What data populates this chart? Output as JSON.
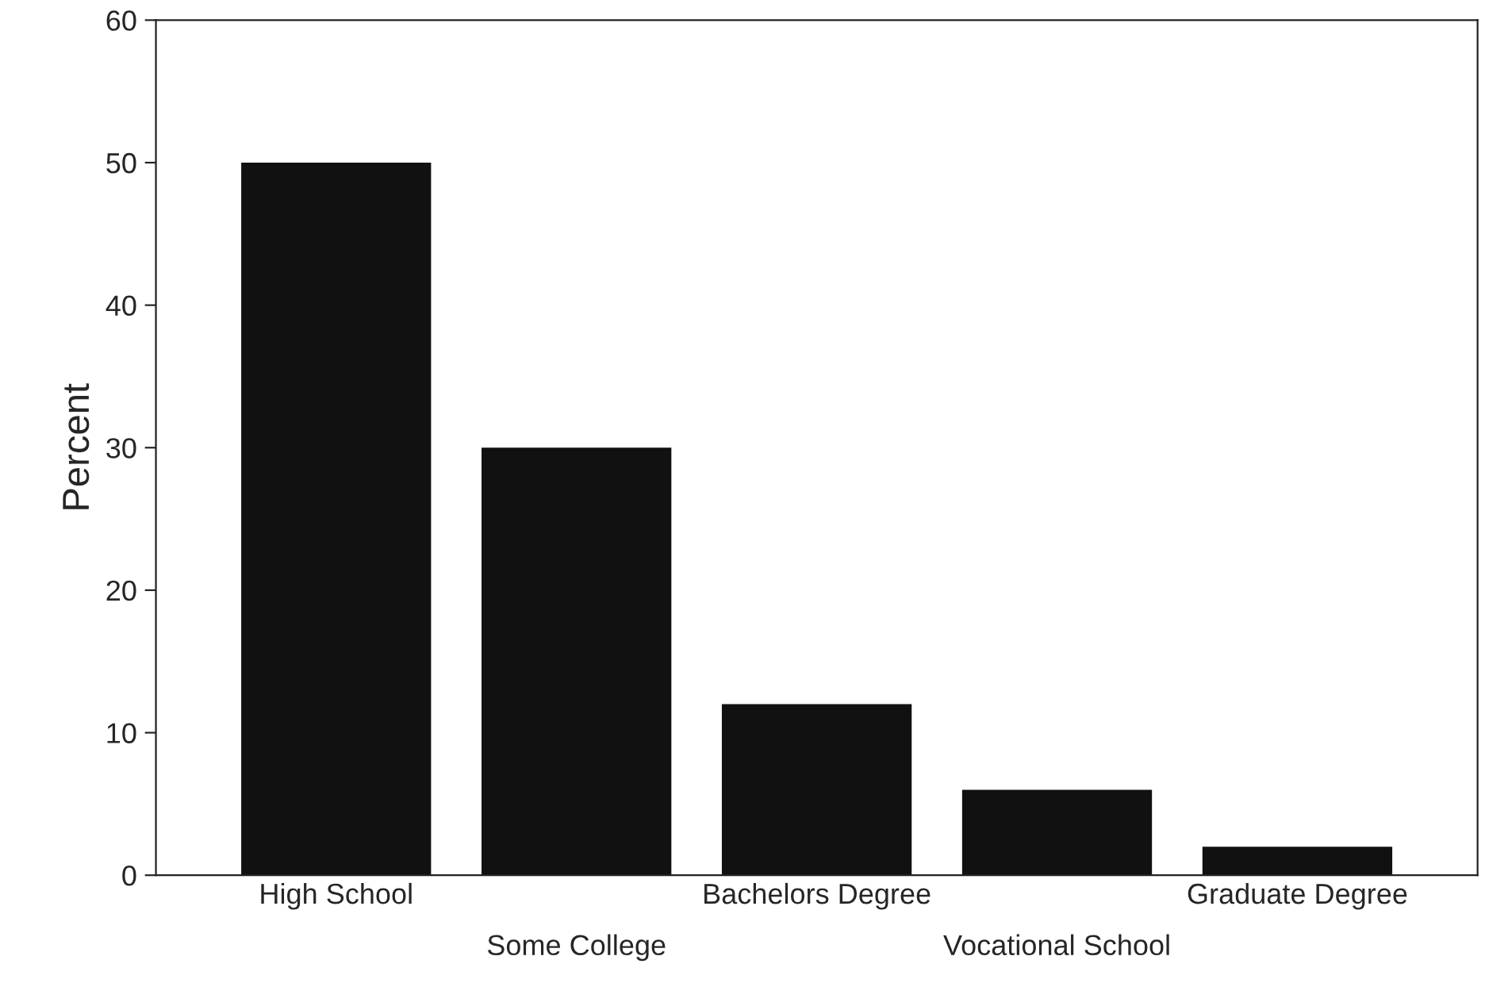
{
  "chart_data": {
    "type": "bar",
    "ylabel": "Percent",
    "categories": [
      "High School",
      "Some College",
      "Bachelors Degree",
      "Vocational School",
      "Graduate Degree"
    ],
    "values": [
      50,
      30,
      12,
      6,
      2
    ],
    "color": "#111111",
    "ylim": [
      0,
      60
    ],
    "yticks": [
      0,
      10,
      20,
      30,
      40,
      50,
      60
    ],
    "grid": false,
    "legend": false
  }
}
